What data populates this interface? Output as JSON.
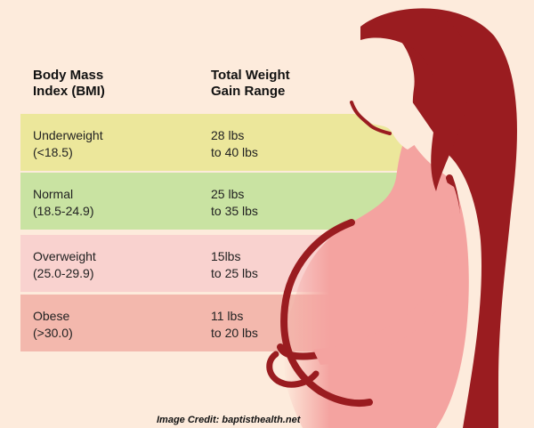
{
  "table": {
    "headers": {
      "bmi": "Body Mass\nIndex (BMI)",
      "gain": "Total Weight\nGain Range"
    },
    "rows": [
      {
        "category": "Underweight\n(<18.5)",
        "gain": "28 lbs\nto 40 lbs"
      },
      {
        "category": "Normal\n(18.5-24.9)",
        "gain": "25 lbs\nto 35 lbs"
      },
      {
        "category": "Overweight\n(25.0-29.9)",
        "gain": "15lbs\nto 25 lbs"
      },
      {
        "category": "Obese\n(>30.0)",
        "gain": "11 lbs\nto 20 lbs"
      }
    ]
  },
  "credit": "Image Credit: baptisthealth.net",
  "illustration": {
    "subject": "pregnant-woman-silhouette",
    "colors": {
      "background": "#fdebdc",
      "hair": "#9a1c20",
      "body": "#f4a3a0",
      "underweight_row": "#ece79b",
      "normal_row": "#c9e3a2",
      "overweight_row": "#f9d2cf",
      "obese_row": "#f3b8ad"
    }
  }
}
